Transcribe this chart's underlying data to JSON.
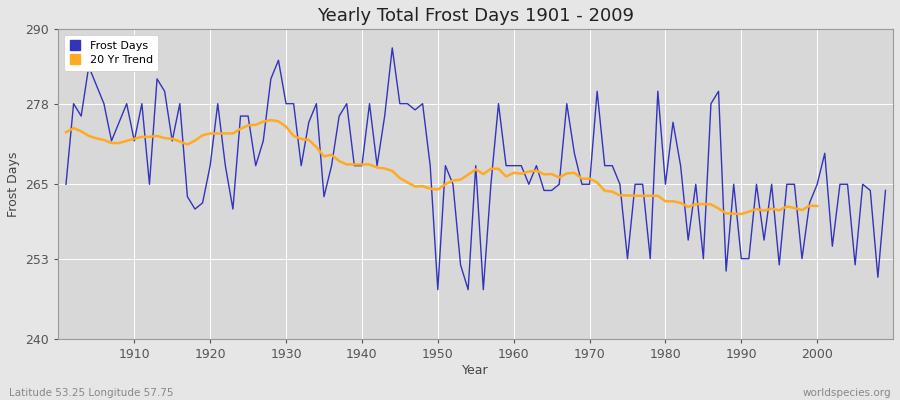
{
  "title": "Yearly Total Frost Days 1901 - 2009",
  "ylabel": "Frost Days",
  "xlabel": "Year",
  "bottom_left_text": "Latitude 53.25 Longitude 57.75",
  "bottom_right_text": "worldspecies.org",
  "ylim": [
    240,
    290
  ],
  "xlim": [
    1901,
    2009
  ],
  "yticks": [
    240,
    253,
    265,
    278,
    290
  ],
  "xticks": [
    1910,
    1920,
    1930,
    1940,
    1950,
    1960,
    1970,
    1980,
    1990,
    2000
  ],
  "bg_color": "#e6e6e6",
  "plot_bg_color": "#d8d8d8",
  "grid_color": "#ffffff",
  "line_color": "#3333bb",
  "trend_color": "#ffaa22",
  "years": [
    1901,
    1902,
    1903,
    1904,
    1905,
    1906,
    1907,
    1908,
    1909,
    1910,
    1911,
    1912,
    1913,
    1914,
    1915,
    1916,
    1917,
    1918,
    1919,
    1920,
    1921,
    1922,
    1923,
    1924,
    1925,
    1926,
    1927,
    1928,
    1929,
    1930,
    1931,
    1932,
    1933,
    1934,
    1935,
    1936,
    1937,
    1938,
    1939,
    1940,
    1941,
    1942,
    1943,
    1944,
    1945,
    1946,
    1947,
    1948,
    1949,
    1950,
    1951,
    1952,
    1953,
    1954,
    1955,
    1956,
    1957,
    1958,
    1959,
    1960,
    1961,
    1962,
    1963,
    1964,
    1965,
    1966,
    1967,
    1968,
    1969,
    1970,
    1971,
    1972,
    1973,
    1974,
    1975,
    1976,
    1977,
    1978,
    1979,
    1980,
    1981,
    1982,
    1983,
    1984,
    1985,
    1986,
    1987,
    1988,
    1989,
    1990,
    1991,
    1992,
    1993,
    1994,
    1995,
    1996,
    1997,
    1998,
    1999,
    2000,
    2001,
    2002,
    2003,
    2004,
    2005,
    2006,
    2007,
    2008,
    2009
  ],
  "frost_days": [
    265,
    278,
    276,
    284,
    281,
    278,
    272,
    275,
    278,
    272,
    278,
    265,
    282,
    280,
    272,
    278,
    263,
    261,
    262,
    268,
    278,
    268,
    261,
    276,
    276,
    268,
    272,
    282,
    285,
    278,
    278,
    268,
    275,
    278,
    263,
    268,
    276,
    278,
    268,
    268,
    278,
    268,
    276,
    287,
    278,
    278,
    277,
    278,
    268,
    248,
    268,
    265,
    252,
    248,
    268,
    248,
    265,
    278,
    268,
    268,
    268,
    265,
    268,
    264,
    264,
    265,
    278,
    270,
    265,
    265,
    280,
    268,
    268,
    265,
    253,
    265,
    265,
    253,
    280,
    265,
    275,
    268,
    256,
    265,
    253,
    278,
    280,
    251,
    265,
    253,
    253,
    265,
    256,
    265,
    252,
    265,
    265,
    253,
    262,
    265,
    270,
    255,
    265,
    265,
    252,
    265,
    264,
    250,
    264
  ]
}
